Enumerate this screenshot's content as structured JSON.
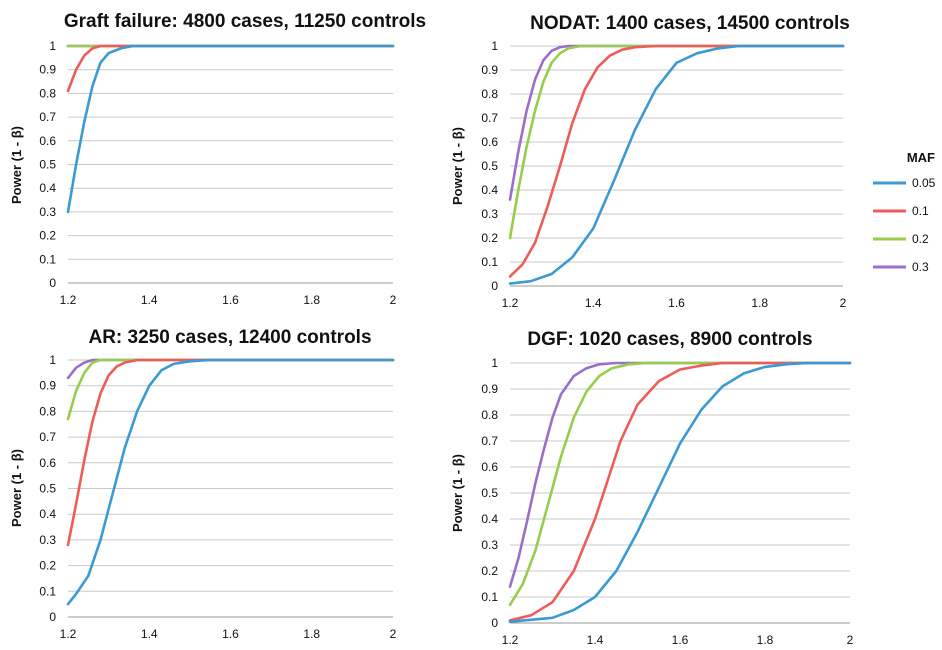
{
  "legend": {
    "title": "MAF",
    "entries": [
      {
        "label": "0.05",
        "color": "#3c9ad3"
      },
      {
        "label": "0.1",
        "color": "#ec5d5a"
      },
      {
        "label": "0.2",
        "color": "#97cc4d"
      },
      {
        "label": "0.3",
        "color": "#9a6fc7"
      }
    ]
  },
  "chart_data": [
    {
      "type": "line",
      "title": "Graft failure: 4800 cases, 11250 controls",
      "ylabel": "Power (1 - β)",
      "xlabel": "",
      "xlim": [
        1.2,
        2
      ],
      "ylim": [
        0,
        1
      ],
      "xticks": [
        "1.2",
        "1.4",
        "1.6",
        "1.8",
        "2"
      ],
      "yticks": [
        "0",
        "0.1",
        "0.2",
        "0.3",
        "0.4",
        "0.5",
        "0.6",
        "0.7",
        "0.8",
        "0.9",
        "1"
      ],
      "grid": true,
      "series": [
        {
          "label": "0.05",
          "points": [
            [
              1.2,
              0.3
            ],
            [
              1.22,
              0.5
            ],
            [
              1.24,
              0.68
            ],
            [
              1.26,
              0.83
            ],
            [
              1.28,
              0.93
            ],
            [
              1.3,
              0.97
            ],
            [
              1.33,
              0.99
            ],
            [
              1.36,
              1.0
            ],
            [
              1.4,
              1.0
            ],
            [
              2.0,
              1.0
            ]
          ]
        },
        {
          "label": "0.1",
          "points": [
            [
              1.2,
              0.81
            ],
            [
              1.22,
              0.9
            ],
            [
              1.24,
              0.96
            ],
            [
              1.26,
              0.99
            ],
            [
              1.28,
              1.0
            ],
            [
              1.3,
              1.0
            ],
            [
              2.0,
              1.0
            ]
          ]
        },
        {
          "label": "0.2",
          "points": [
            [
              1.2,
              1.0
            ],
            [
              2.0,
              1.0
            ]
          ]
        },
        {
          "label": "0.3",
          "points": [
            [
              1.2,
              1.0
            ],
            [
              2.0,
              1.0
            ]
          ]
        }
      ]
    },
    {
      "type": "line",
      "title": "NODAT: 1400 cases, 14500 controls",
      "ylabel": "Power (1 - β)",
      "xlabel": "",
      "xlim": [
        1.2,
        2
      ],
      "ylim": [
        0,
        1
      ],
      "xticks": [
        "1.2",
        "1.4",
        "1.6",
        "1.8",
        "2"
      ],
      "yticks": [
        "0",
        "0.1",
        "0.2",
        "0.3",
        "0.4",
        "0.5",
        "0.6",
        "0.7",
        "0.8",
        "0.9",
        "1"
      ],
      "grid": true,
      "series": [
        {
          "label": "0.05",
          "points": [
            [
              1.2,
              0.01
            ],
            [
              1.25,
              0.02
            ],
            [
              1.3,
              0.05
            ],
            [
              1.35,
              0.12
            ],
            [
              1.4,
              0.24
            ],
            [
              1.45,
              0.44
            ],
            [
              1.5,
              0.65
            ],
            [
              1.55,
              0.82
            ],
            [
              1.6,
              0.93
            ],
            [
              1.65,
              0.97
            ],
            [
              1.7,
              0.99
            ],
            [
              1.75,
              1.0
            ],
            [
              1.8,
              1.0
            ],
            [
              2.0,
              1.0
            ]
          ]
        },
        {
          "label": "0.1",
          "points": [
            [
              1.2,
              0.04
            ],
            [
              1.23,
              0.09
            ],
            [
              1.26,
              0.18
            ],
            [
              1.29,
              0.33
            ],
            [
              1.32,
              0.5
            ],
            [
              1.35,
              0.68
            ],
            [
              1.38,
              0.82
            ],
            [
              1.41,
              0.91
            ],
            [
              1.44,
              0.96
            ],
            [
              1.47,
              0.985
            ],
            [
              1.5,
              0.995
            ],
            [
              1.55,
              1.0
            ],
            [
              2.0,
              1.0
            ]
          ]
        },
        {
          "label": "0.2",
          "points": [
            [
              1.2,
              0.2
            ],
            [
              1.22,
              0.4
            ],
            [
              1.24,
              0.58
            ],
            [
              1.26,
              0.73
            ],
            [
              1.28,
              0.85
            ],
            [
              1.3,
              0.93
            ],
            [
              1.32,
              0.97
            ],
            [
              1.34,
              0.99
            ],
            [
              1.37,
              1.0
            ],
            [
              2.0,
              1.0
            ]
          ]
        },
        {
          "label": "0.3",
          "points": [
            [
              1.2,
              0.36
            ],
            [
              1.22,
              0.56
            ],
            [
              1.24,
              0.73
            ],
            [
              1.26,
              0.86
            ],
            [
              1.28,
              0.94
            ],
            [
              1.3,
              0.98
            ],
            [
              1.32,
              0.995
            ],
            [
              1.34,
              1.0
            ],
            [
              2.0,
              1.0
            ]
          ]
        }
      ]
    },
    {
      "type": "line",
      "title": "AR: 3250 cases, 12400 controls",
      "ylabel": "Power (1 - β)",
      "xlabel": "",
      "xlim": [
        1.2,
        2
      ],
      "ylim": [
        0,
        1
      ],
      "xticks": [
        "1.2",
        "1.4",
        "1.6",
        "1.8",
        "2"
      ],
      "yticks": [
        "0",
        "0.1",
        "0.2",
        "0.3",
        "0.4",
        "0.5",
        "0.6",
        "0.7",
        "0.8",
        "0.9",
        "1"
      ],
      "grid": true,
      "series": [
        {
          "label": "0.05",
          "points": [
            [
              1.2,
              0.05
            ],
            [
              1.22,
              0.09
            ],
            [
              1.25,
              0.16
            ],
            [
              1.28,
              0.3
            ],
            [
              1.31,
              0.48
            ],
            [
              1.34,
              0.66
            ],
            [
              1.37,
              0.8
            ],
            [
              1.4,
              0.9
            ],
            [
              1.43,
              0.96
            ],
            [
              1.46,
              0.985
            ],
            [
              1.5,
              0.995
            ],
            [
              1.55,
              1.0
            ],
            [
              2.0,
              1.0
            ]
          ]
        },
        {
          "label": "0.1",
          "points": [
            [
              1.2,
              0.28
            ],
            [
              1.22,
              0.44
            ],
            [
              1.24,
              0.61
            ],
            [
              1.26,
              0.76
            ],
            [
              1.28,
              0.87
            ],
            [
              1.3,
              0.94
            ],
            [
              1.32,
              0.975
            ],
            [
              1.34,
              0.99
            ],
            [
              1.37,
              1.0
            ],
            [
              2.0,
              1.0
            ]
          ]
        },
        {
          "label": "0.2",
          "points": [
            [
              1.2,
              0.77
            ],
            [
              1.22,
              0.88
            ],
            [
              1.24,
              0.95
            ],
            [
              1.26,
              0.99
            ],
            [
              1.28,
              1.0
            ],
            [
              2.0,
              1.0
            ]
          ]
        },
        {
          "label": "0.3",
          "points": [
            [
              1.2,
              0.93
            ],
            [
              1.22,
              0.97
            ],
            [
              1.24,
              0.99
            ],
            [
              1.26,
              1.0
            ],
            [
              2.0,
              1.0
            ]
          ]
        }
      ]
    },
    {
      "type": "line",
      "title": "DGF: 1020 cases, 8900 controls",
      "ylabel": "Power (1 - β)",
      "xlabel": "",
      "xlim": [
        1.2,
        2
      ],
      "ylim": [
        0,
        1
      ],
      "xticks": [
        "1.2",
        "1.4",
        "1.6",
        "1.8",
        "2"
      ],
      "yticks": [
        "0",
        "0.1",
        "0.2",
        "0.3",
        "0.4",
        "0.5",
        "0.6",
        "0.7",
        "0.8",
        "0.9",
        "1"
      ],
      "grid": true,
      "series": [
        {
          "label": "0.05",
          "points": [
            [
              1.2,
              0.005
            ],
            [
              1.3,
              0.02
            ],
            [
              1.35,
              0.05
            ],
            [
              1.4,
              0.1
            ],
            [
              1.45,
              0.2
            ],
            [
              1.5,
              0.35
            ],
            [
              1.55,
              0.52
            ],
            [
              1.6,
              0.69
            ],
            [
              1.65,
              0.82
            ],
            [
              1.7,
              0.91
            ],
            [
              1.75,
              0.96
            ],
            [
              1.8,
              0.985
            ],
            [
              1.85,
              0.995
            ],
            [
              1.9,
              1.0
            ],
            [
              2.0,
              1.0
            ]
          ]
        },
        {
          "label": "0.1",
          "points": [
            [
              1.2,
              0.01
            ],
            [
              1.25,
              0.03
            ],
            [
              1.3,
              0.08
            ],
            [
              1.35,
              0.2
            ],
            [
              1.4,
              0.4
            ],
            [
              1.43,
              0.55
            ],
            [
              1.46,
              0.7
            ],
            [
              1.5,
              0.84
            ],
            [
              1.55,
              0.93
            ],
            [
              1.6,
              0.975
            ],
            [
              1.65,
              0.99
            ],
            [
              1.7,
              1.0
            ],
            [
              2.0,
              1.0
            ]
          ]
        },
        {
          "label": "0.2",
          "points": [
            [
              1.2,
              0.07
            ],
            [
              1.23,
              0.15
            ],
            [
              1.26,
              0.28
            ],
            [
              1.29,
              0.46
            ],
            [
              1.32,
              0.64
            ],
            [
              1.35,
              0.79
            ],
            [
              1.38,
              0.89
            ],
            [
              1.41,
              0.95
            ],
            [
              1.44,
              0.98
            ],
            [
              1.48,
              0.995
            ],
            [
              1.52,
              1.0
            ],
            [
              2.0,
              1.0
            ]
          ]
        },
        {
          "label": "0.3",
          "points": [
            [
              1.2,
              0.14
            ],
            [
              1.22,
              0.25
            ],
            [
              1.24,
              0.39
            ],
            [
              1.26,
              0.54
            ],
            [
              1.28,
              0.67
            ],
            [
              1.3,
              0.79
            ],
            [
              1.32,
              0.88
            ],
            [
              1.35,
              0.95
            ],
            [
              1.38,
              0.98
            ],
            [
              1.41,
              0.995
            ],
            [
              1.45,
              1.0
            ],
            [
              2.0,
              1.0
            ]
          ]
        }
      ]
    }
  ]
}
